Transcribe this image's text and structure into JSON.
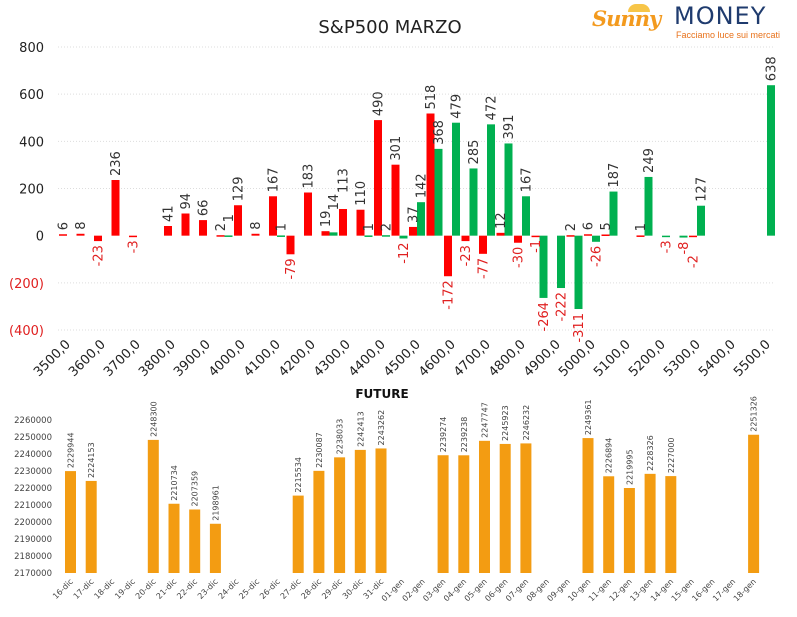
{
  "logo": {
    "brand1": "Sunny",
    "brand2": "MONEY",
    "tagline": "Facciamo luce sui mercati"
  },
  "colors": {
    "put": "#ff0000",
    "call": "#00b050",
    "future": "#f39c12",
    "neg_label": "#e02020",
    "label": "#333333"
  },
  "chart_data": [
    {
      "type": "bar",
      "title": "S&P500 MARZO",
      "ylim": [
        -400,
        800
      ],
      "yticks": [
        800,
        600,
        400,
        200,
        0,
        -200,
        -400
      ],
      "ytick_labels": [
        "800",
        "600",
        "400",
        "200",
        "0",
        "(200)",
        "(400)"
      ],
      "grid": true,
      "categories": [
        3500,
        3550,
        3600,
        3650,
        3700,
        3750,
        3800,
        3850,
        3900,
        3950,
        4000,
        4050,
        4100,
        4150,
        4200,
        4250,
        4300,
        4350,
        4400,
        4450,
        4500,
        4550,
        4600,
        4650,
        4700,
        4750,
        4800,
        4850,
        4900,
        4950,
        5000,
        5050,
        5100,
        5150,
        5200,
        5250,
        5300,
        5350,
        5400,
        5450,
        5500
      ],
      "xtick_labels": [
        "3500,0",
        "3600,0",
        "3700,0",
        "3800,0",
        "3900,0",
        "4000,0",
        "4100,0",
        "4200,0",
        "4300,0",
        "4400,0",
        "4500,0",
        "4600,0",
        "4700,0",
        "4800,0",
        "4900,0",
        "5000,0",
        "5100,0",
        "5200,0",
        "5300,0",
        "5400,0",
        "5500,0"
      ],
      "series": [
        {
          "name": "Put",
          "color": "#ff0000",
          "values": [
            6,
            8,
            -23,
            236,
            -3,
            null,
            41,
            94,
            66,
            2,
            129,
            8,
            167,
            -79,
            183,
            19,
            113,
            110,
            490,
            301,
            37,
            518,
            -172,
            -23,
            -77,
            12,
            -30,
            -1,
            null,
            2,
            6,
            5,
            null,
            1,
            null,
            null,
            -2,
            null,
            null,
            null,
            null
          ]
        },
        {
          "name": "Call",
          "color": "#00b050",
          "values": [
            null,
            null,
            null,
            null,
            null,
            null,
            null,
            null,
            null,
            1,
            null,
            null,
            1,
            null,
            null,
            14,
            null,
            1,
            2,
            -12,
            142,
            368,
            479,
            285,
            472,
            391,
            167,
            -264,
            -222,
            -311,
            -26,
            187,
            null,
            249,
            -3,
            -8,
            127,
            null,
            null,
            null,
            638
          ]
        }
      ]
    },
    {
      "type": "bar",
      "title": "FUTURE",
      "ylim": [
        2170000,
        2260000
      ],
      "yticks": [
        2260000,
        2250000,
        2240000,
        2230000,
        2220000,
        2210000,
        2200000,
        2190000,
        2180000,
        2170000
      ],
      "categories": [
        "16-dic",
        "17-dic",
        "18-dic",
        "19-dic",
        "20-dic",
        "21-dic",
        "22-dic",
        "23-dic",
        "24-dic",
        "25-dic",
        "26-dic",
        "27-dic",
        "28-dic",
        "29-dic",
        "30-dic",
        "31-dic",
        "01-gen",
        "02-gen",
        "03-gen",
        "04-gen",
        "05-gen",
        "06-gen",
        "07-gen",
        "08-gen",
        "09-gen",
        "10-gen",
        "11-gen",
        "12-gen",
        "13-gen",
        "14-gen",
        "15-gen",
        "16-gen",
        "17-gen",
        "18-gen"
      ],
      "values": [
        2229944,
        2224153,
        null,
        null,
        2248300,
        2210734,
        2207359,
        2198961,
        null,
        null,
        null,
        2215534,
        2230087,
        2238033,
        2242413,
        2243262,
        null,
        null,
        2239274,
        2239238,
        2247747,
        2245923,
        2246232,
        null,
        null,
        2249361,
        2226894,
        2219995,
        2228326,
        2227000,
        null,
        null,
        null,
        2251326
      ]
    }
  ]
}
